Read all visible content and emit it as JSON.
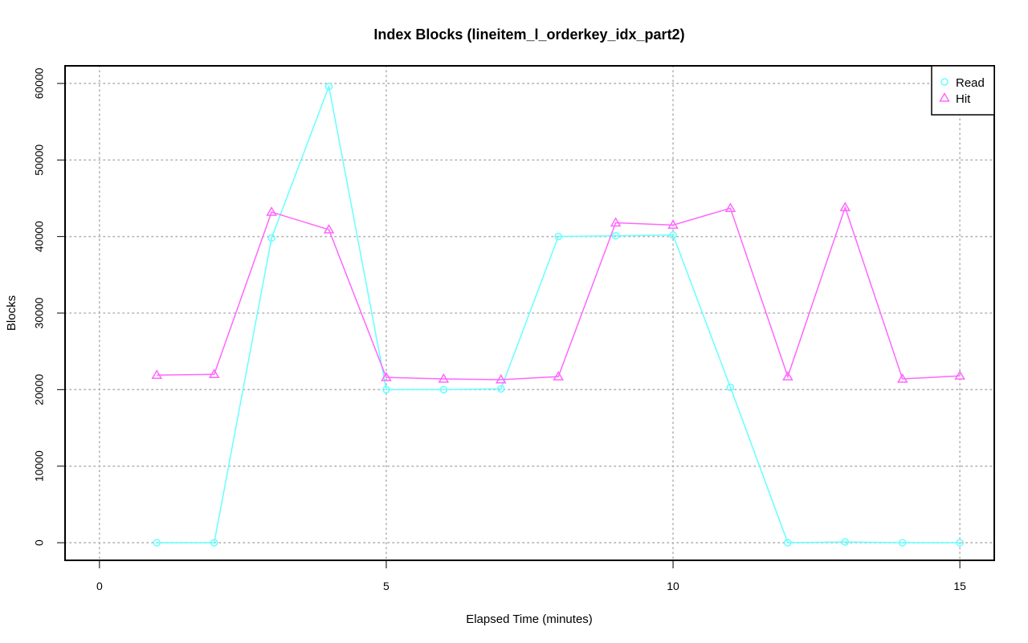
{
  "chart_data": {
    "type": "line",
    "title": "Index Blocks (lineitem_l_orderkey_idx_part2)",
    "xlabel": "Elapsed Time (minutes)",
    "ylabel": "Blocks",
    "xlim": [
      -0.6,
      15.6
    ],
    "ylim": [
      -2300,
      62300
    ],
    "xticks": [
      0,
      5,
      10,
      15
    ],
    "yticks": [
      0,
      10000,
      20000,
      30000,
      40000,
      50000,
      60000
    ],
    "grid": true,
    "legend_position": "top-right",
    "x": [
      1,
      2,
      3,
      4,
      5,
      6,
      7,
      8,
      9,
      10,
      11,
      12,
      13,
      14,
      15
    ],
    "series": [
      {
        "name": "Read",
        "color": "#66ffff",
        "marker": "circle",
        "values": [
          0,
          0,
          39800,
          59600,
          20000,
          20000,
          20100,
          40000,
          40100,
          40200,
          20300,
          0,
          100,
          0,
          0
        ]
      },
      {
        "name": "Hit",
        "color": "#ff66ff",
        "marker": "triangle",
        "values": [
          21900,
          22000,
          43200,
          40900,
          21600,
          21400,
          21300,
          21700,
          41800,
          41500,
          43700,
          21700,
          43800,
          21400,
          21800
        ]
      }
    ]
  }
}
